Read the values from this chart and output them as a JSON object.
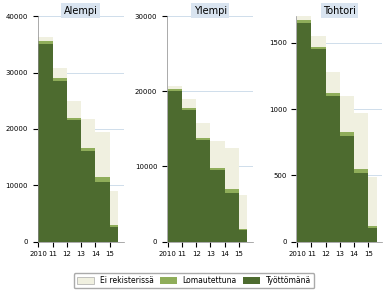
{
  "panels": [
    "Alempi",
    "Ylempi",
    "Tohtori"
  ],
  "years": [
    2010,
    2011,
    2012,
    2013,
    2014,
    2015
  ],
  "year_labels": [
    "2010",
    "11",
    "12",
    "13",
    "14",
    "15"
  ],
  "alempi": {
    "tyottomana": [
      35000,
      28500,
      21500,
      16000,
      10500,
      2500
    ],
    "lomautettuna": [
      600,
      500,
      500,
      700,
      900,
      400
    ],
    "ei_rekisterissa": [
      800,
      1800,
      3000,
      5000,
      8000,
      6000
    ]
  },
  "ylempi": {
    "tyottomana": [
      20000,
      17500,
      13500,
      9500,
      6500,
      1500
    ],
    "lomautettuna": [
      300,
      250,
      300,
      350,
      450,
      200
    ],
    "ei_rekisterissa": [
      400,
      1200,
      2000,
      3500,
      5500,
      4500
    ]
  },
  "tohtori": {
    "tyottomana": [
      1650,
      1450,
      1100,
      800,
      520,
      100
    ],
    "lomautettuna": [
      25,
      20,
      20,
      30,
      30,
      15
    ],
    "ei_rekisterissa": [
      30,
      80,
      160,
      270,
      420,
      370
    ]
  },
  "ylims": {
    "Alempi": [
      40000,
      0
    ],
    "Ylempi": [
      30000,
      0
    ],
    "Tohtori": [
      1700,
      0
    ]
  },
  "yticks": {
    "Alempi": [
      0,
      10000,
      20000,
      30000,
      40000
    ],
    "Ylempi": [
      0,
      10000,
      20000,
      30000
    ],
    "Tohtori": [
      0,
      500,
      1000,
      1500
    ]
  },
  "color_tyottomana": "#4d6b2f",
  "color_lomautettuna": "#8fad5a",
  "color_ei_rekisterissa": "#f0f0e0",
  "legend_labels": [
    "Ei rekisterissä",
    "Lomautettuna",
    "Työttömänä"
  ],
  "panel_bg": "#d9e4f0",
  "fig_bg": "#ffffff",
  "grid_color": "#c8d8e8"
}
